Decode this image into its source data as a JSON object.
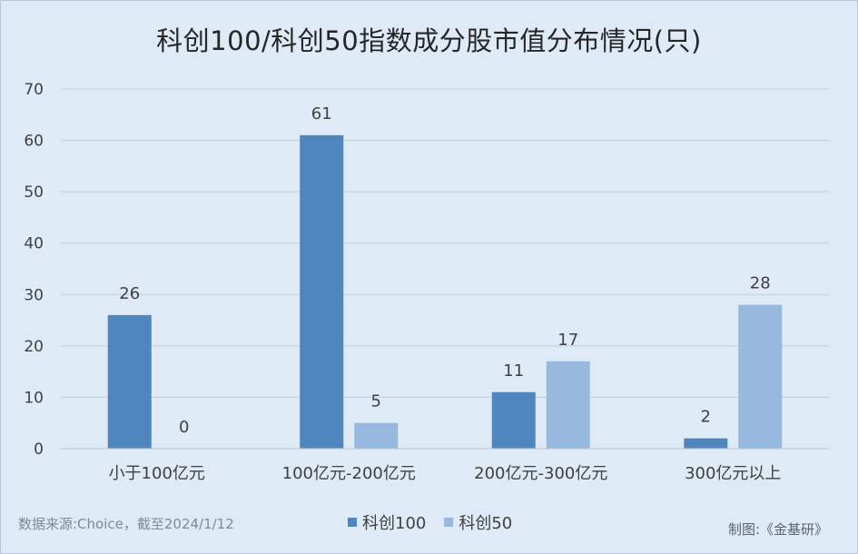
{
  "title": "科创100/科创50指数成分股市值分布情况(只)",
  "source_note": "数据来源:Choice，截至2024/1/12",
  "credit": "制图:《金基研》",
  "colors": {
    "series1": "#4f86bd",
    "series2": "#98b9de",
    "grid": "#c4cdd6",
    "axis_text": "#404040"
  },
  "chart_data": {
    "type": "bar",
    "title": "科创100/科创50指数成分股市值分布情况(只)",
    "categories": [
      "小于100亿元",
      "100亿元-200亿元",
      "200亿元-300亿元",
      "300亿元以上"
    ],
    "series": [
      {
        "name": "科创100",
        "values": [
          26,
          61,
          11,
          2
        ]
      },
      {
        "name": "科创50",
        "values": [
          0,
          5,
          17,
          28
        ]
      }
    ],
    "ylim": [
      0,
      70
    ],
    "yticks": [
      0,
      10,
      20,
      30,
      40,
      50,
      60,
      70
    ],
    "grid": true,
    "legend_position": "bottom",
    "data_labels": true
  }
}
